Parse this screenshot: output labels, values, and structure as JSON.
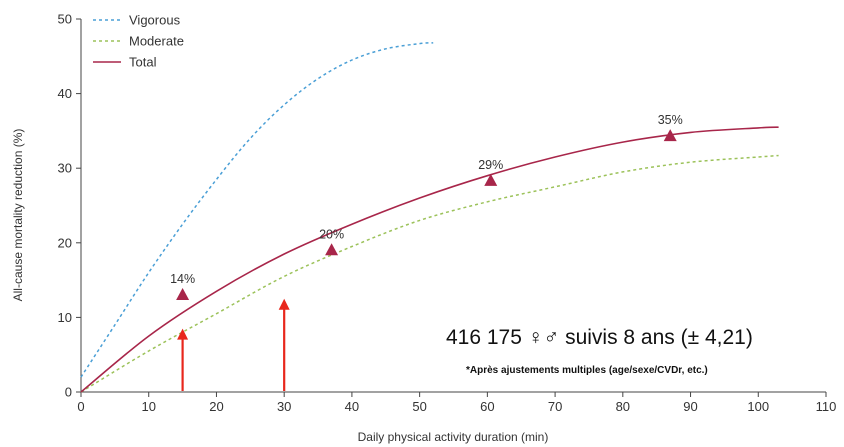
{
  "chart_data": {
    "type": "line",
    "xlabel": "Daily physical activity duration (min)",
    "ylabel": "All-cause mortality reduction (%)",
    "xlim": [
      0,
      110
    ],
    "ylim": [
      0,
      50
    ],
    "x_ticks": [
      0,
      10,
      20,
      30,
      40,
      50,
      60,
      70,
      80,
      90,
      100,
      110
    ],
    "y_ticks": [
      0,
      10,
      20,
      30,
      40,
      50
    ],
    "grid": false,
    "legend_position": "top-left",
    "series": [
      {
        "name": "Vigorous",
        "style": "dotted",
        "color": "#4a9fd6",
        "x": [
          0,
          5,
          10,
          15,
          20,
          25,
          30,
          35,
          40,
          45,
          50,
          52
        ],
        "y": [
          2,
          9,
          16,
          22.5,
          28.5,
          34,
          38.5,
          42,
          44.5,
          46,
          46.7,
          46.8
        ]
      },
      {
        "name": "Moderate",
        "style": "dotted",
        "color": "#9cc25a",
        "x": [
          0,
          10,
          20,
          30,
          40,
          50,
          60,
          70,
          80,
          90,
          100,
          103
        ],
        "y": [
          0,
          5.5,
          10.5,
          15.5,
          19.5,
          23,
          25.5,
          27.5,
          29.5,
          30.8,
          31.5,
          31.7
        ]
      },
      {
        "name": "Total",
        "style": "solid",
        "color": "#a8264a",
        "x": [
          0,
          10,
          20,
          30,
          40,
          50,
          60,
          70,
          80,
          90,
          100,
          103
        ],
        "y": [
          0,
          7.5,
          13.5,
          18.5,
          22.5,
          26,
          29,
          31.5,
          33.5,
          34.8,
          35.4,
          35.5
        ]
      }
    ],
    "markers": [
      {
        "x": 15,
        "y": 13,
        "label": "14%"
      },
      {
        "x": 37,
        "y": 19,
        "label": "20%"
      },
      {
        "x": 60.5,
        "y": 28.3,
        "label": "29%"
      },
      {
        "x": 87,
        "y": 34.3,
        "label": "35%"
      }
    ],
    "arrows": [
      {
        "x": 15,
        "y_from": 0,
        "y_to": 8.5
      },
      {
        "x": 30,
        "y_from": 0,
        "y_to": 12.5
      }
    ],
    "marker_color": "#a8264a",
    "arrow_color": "#e8271c",
    "annotation_main": "416 175 ♀♂ suivis 8 ans (± 4,21)",
    "annotation_note": "*Après ajustements multiples (age/sexe/CVDr, etc.)"
  }
}
